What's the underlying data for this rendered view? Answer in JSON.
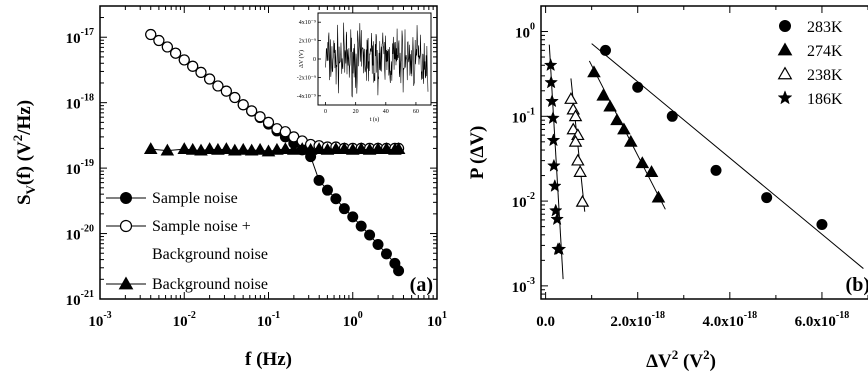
{
  "chart_data": [
    {
      "panel": "a",
      "type": "scatter",
      "panel_label": "(a)",
      "xlabel": "f (Hz)",
      "ylabel": "S_V(f) (V²/Hz)",
      "xscale": "log",
      "yscale": "log",
      "xlim": [
        0.001,
        10
      ],
      "ylim": [
        1e-21,
        3e-17
      ],
      "x_ticks": [
        {
          "value": 0.001,
          "mantissa": "10",
          "exp": "-3"
        },
        {
          "value": 0.01,
          "mantissa": "10",
          "exp": "-2"
        },
        {
          "value": 0.1,
          "mantissa": "10",
          "exp": "-1"
        },
        {
          "value": 1,
          "mantissa": "10",
          "exp": "0"
        },
        {
          "value": 10,
          "mantissa": "10",
          "exp": "1"
        }
      ],
      "y_ticks": [
        {
          "value": 1e-21,
          "mantissa": "10",
          "exp": "-21"
        },
        {
          "value": 1e-20,
          "mantissa": "10",
          "exp": "-20"
        },
        {
          "value": 1e-19,
          "mantissa": "10",
          "exp": "-19"
        },
        {
          "value": 1e-18,
          "mantissa": "10",
          "exp": "-18"
        },
        {
          "value": 1e-17,
          "mantissa": "10",
          "exp": "-17"
        }
      ],
      "legend_position": "bottom-left",
      "series": [
        {
          "name": "Sample noise",
          "marker": "filled-circle",
          "x": [
            0.004,
            0.005,
            0.0063,
            0.0079,
            0.01,
            0.0126,
            0.0158,
            0.02,
            0.0251,
            0.0316,
            0.0398,
            0.0501,
            0.0631,
            0.0794,
            0.1,
            0.1259,
            0.1585,
            0.1995,
            0.2512,
            0.3162,
            0.3981,
            0.5012,
            0.631,
            0.7943,
            1.0,
            1.2589,
            1.5849,
            1.9953,
            2.5119,
            3.1623,
            3.5
          ],
          "y": [
            1.1e-17,
            8.9e-18,
            7.1e-18,
            5.7e-18,
            4.5e-18,
            3.6e-18,
            2.9e-18,
            2.3e-18,
            1.8e-18,
            1.5e-18,
            1.2e-18,
            9.3e-19,
            7.4e-19,
            5.9e-19,
            4.7e-19,
            3.7e-19,
            3e-19,
            2.4e-19,
            1.9e-19,
            1.5e-19,
            6.5e-20,
            4.6e-20,
            3.4e-20,
            2.4e-20,
            1.8e-20,
            1.3e-20,
            9.5e-21,
            6.8e-21,
            4.9e-21,
            3.5e-21,
            2.7e-21
          ]
        },
        {
          "name": "Sample noise + Background noise",
          "label_lines": [
            "Sample noise +",
            "Background noise"
          ],
          "marker": "open-circle",
          "x": [
            0.004,
            0.005,
            0.0063,
            0.0079,
            0.01,
            0.0126,
            0.0158,
            0.02,
            0.0251,
            0.0316,
            0.0398,
            0.0501,
            0.0631,
            0.0794,
            0.1,
            0.1259,
            0.1585,
            0.1995,
            0.2512,
            0.3162,
            0.3981,
            0.5012,
            0.631,
            0.7943,
            1.0,
            1.2589,
            1.5849,
            1.9953,
            2.5119,
            3.1623,
            3.5
          ],
          "y": [
            1.1e-17,
            8.9e-18,
            7.1e-18,
            5.7e-18,
            4.5e-18,
            3.6e-18,
            2.9e-18,
            2.3e-18,
            1.8e-18,
            1.5e-18,
            1.2e-18,
            9.3e-19,
            7.5e-19,
            6.1e-19,
            5e-19,
            4e-19,
            3.6e-19,
            3e-19,
            2.6e-19,
            2.3e-19,
            2.2e-19,
            2.1e-19,
            2.1e-19,
            2e-19,
            2e-19,
            2e-19,
            2e-19,
            2e-19,
            2e-19,
            2e-19,
            2e-19
          ]
        },
        {
          "name": "Background noise",
          "marker": "filled-triangle",
          "x": [
            0.004,
            0.0063,
            0.01,
            0.0126,
            0.0158,
            0.02,
            0.0251,
            0.0316,
            0.0398,
            0.0501,
            0.0631,
            0.0794,
            0.1,
            0.1259,
            0.1585,
            0.1995,
            0.2512,
            0.3162,
            0.3981,
            0.5012,
            0.631,
            0.7943,
            1.0,
            1.2589,
            1.5849,
            1.9953,
            2.5119,
            3.1623,
            3.5
          ],
          "y": [
            1.95e-19,
            1.85e-19,
            1.95e-19,
            1.9e-19,
            1.85e-19,
            1.95e-19,
            1.9e-19,
            1.95e-19,
            1.85e-19,
            1.9e-19,
            1.85e-19,
            1.9e-19,
            1.8e-19,
            1.9e-19,
            1.95e-19,
            1.9e-19,
            1.95e-19,
            1.9e-19,
            1.95e-19,
            1.9e-19,
            1.95e-19,
            1.95e-19,
            1.9e-19,
            1.95e-19,
            1.9e-19,
            1.95e-19,
            1.95e-19,
            1.9e-19,
            1.95e-19
          ]
        }
      ],
      "inset": {
        "type": "line",
        "xlabel": "t (s)",
        "ylabel": "ΔV (V)",
        "xlim": [
          -5,
          70
        ],
        "ylim": [
          -5e-09,
          5e-09
        ],
        "x_ticks": [
          "0",
          "20",
          "40",
          "60"
        ],
        "y_ticks": [
          "4x10⁻⁹",
          "2x10⁻⁹",
          "0",
          "-2x10⁻⁹",
          "-4x10⁻⁹"
        ],
        "y_tick_values": [
          4e-09,
          2e-09,
          0,
          -2e-09,
          -4e-09
        ],
        "x_tick_values": [
          0,
          20,
          40,
          60
        ],
        "description": "random noise fluctuations between about -4x10⁻⁹ and 4x10⁻⁹ V over 0–68 s"
      }
    },
    {
      "panel": "b",
      "type": "scatter",
      "panel_label": "(b)",
      "xlabel": "ΔV² (V²)",
      "ylabel": "P (ΔV)",
      "xscale": "linear",
      "yscale": "log",
      "xlim": [
        -1e-19,
        7e-18
      ],
      "ylim": [
        0.0007,
        2
      ],
      "x_ticks": [
        {
          "value": 0,
          "text": "0.0"
        },
        {
          "value": 2e-18,
          "text": "2.0x10",
          "exp": "-18"
        },
        {
          "value": 4e-18,
          "text": "4.0x10",
          "exp": "-18"
        },
        {
          "value": 6e-18,
          "text": "6.0x10",
          "exp": "-18"
        }
      ],
      "y_ticks": [
        {
          "value": 0.001,
          "mantissa": "10",
          "exp": "-3"
        },
        {
          "value": 0.01,
          "mantissa": "10",
          "exp": "-2"
        },
        {
          "value": 0.1,
          "mantissa": "10",
          "exp": "-1"
        },
        {
          "value": 1,
          "mantissa": "10",
          "exp": "0"
        }
      ],
      "legend_position": "top-right",
      "series": [
        {
          "name": "283K",
          "marker": "filled-circle",
          "x": [
            1.3e-18,
            2e-18,
            2.75e-18,
            3.7e-18,
            4.8e-18,
            6e-18
          ],
          "y": [
            0.6,
            0.22,
            0.1,
            0.023,
            0.011,
            0.0053
          ],
          "fit": {
            "x": [
              1e-18,
              6.9e-18
            ],
            "y": [
              0.72,
              0.0016
            ]
          }
        },
        {
          "name": "274K",
          "marker": "filled-triangle",
          "x": [
            1.05e-18,
            1.25e-18,
            1.4e-18,
            1.55e-18,
            1.7e-18,
            1.85e-18,
            2.1e-18,
            2.3e-18,
            2.45e-18
          ],
          "y": [
            0.33,
            0.175,
            0.13,
            0.09,
            0.07,
            0.05,
            0.028,
            0.022,
            0.011
          ],
          "fit": {
            "x": [
              9.5e-19,
              2.6e-18
            ],
            "y": [
              0.45,
              0.008
            ]
          }
        },
        {
          "name": "238K",
          "marker": "open-triangle",
          "x": [
            5.5e-19,
            6e-19,
            6.5e-19,
            6e-19,
            7e-19,
            6.5e-19,
            7e-19,
            7.5e-19,
            8e-19
          ],
          "y": [
            0.16,
            0.12,
            0.1,
            0.07,
            0.06,
            0.05,
            0.03,
            0.022,
            0.0098
          ],
          "fit": {
            "x": [
              5.5e-19,
              8.5e-19
            ],
            "y": [
              0.28,
              0.0075
            ]
          }
        },
        {
          "name": "186K",
          "marker": "star",
          "x": [
            1.1e-19,
            1.2e-19,
            1.4e-19,
            1.6e-19,
            1.7e-19,
            1.8e-19,
            2e-19,
            2.2e-19,
            2.5e-19,
            2.7e-19,
            3e-19
          ],
          "y": [
            0.4,
            0.25,
            0.15,
            0.095,
            0.052,
            0.026,
            0.015,
            0.0077,
            0.0061,
            0.0027,
            0.0027
          ],
          "fit": {
            "x": [
              8e-20,
              3.8e-19
            ],
            "y": [
              0.7,
              0.0012
            ]
          }
        }
      ]
    }
  ]
}
